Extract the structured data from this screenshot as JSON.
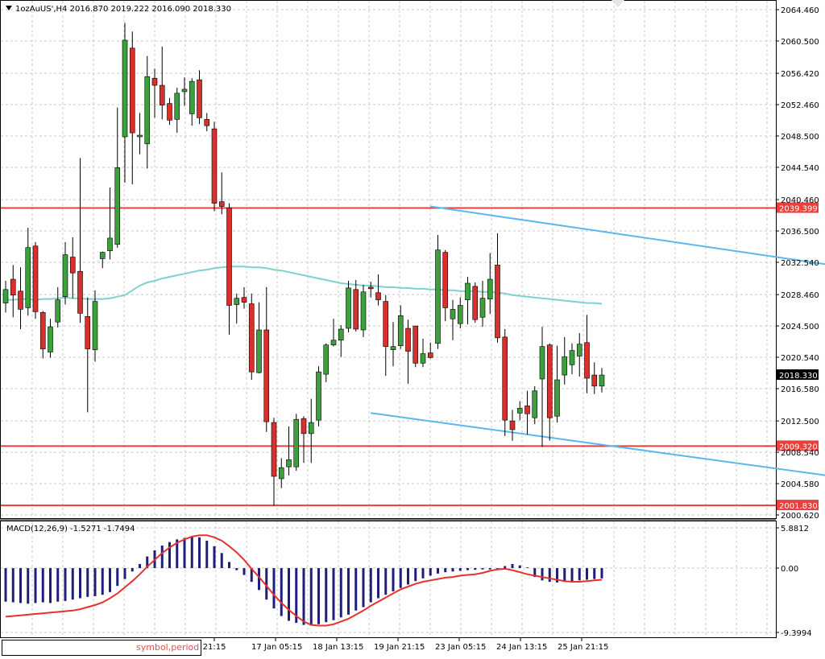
{
  "header": {
    "symbol": "1ozAuUS'",
    "timeframe": "H4",
    "ohlc": "2016.870 2019.222 2016.090 2018.330",
    "menu_icon": "triangle-down-icon"
  },
  "price_axis": {
    "ticks": [
      "2064.460",
      "2060.500",
      "2056.420",
      "2052.460",
      "2048.500",
      "2044.540",
      "2040.460",
      "2036.500",
      "2032.540",
      "2028.460",
      "2024.500",
      "2020.540",
      "2016.580",
      "2012.500",
      "2008.540",
      "2004.580",
      "2000.620"
    ],
    "current_price_label": "2018.330"
  },
  "levels": [
    {
      "label": "2039.399",
      "value": 2039.399,
      "color": "#e8413c"
    },
    {
      "label": "2009.320",
      "value": 2009.32,
      "color": "#e8413c"
    },
    {
      "label": "2001.830",
      "value": 2001.83,
      "color": "#e8413c"
    }
  ],
  "macd": {
    "label": "MACD(12,26,9) -1.5271 -1.7494",
    "ticks": [
      "5.8812",
      "0.00",
      "-9.3994"
    ]
  },
  "time_axis": {
    "labels": [
      "an 21:15",
      "17 Jan 05:15",
      "18 Jan 13:15",
      "19 Jan 21:15",
      "23 Jan 05:15",
      "24 Jan 13:15",
      "25 Jan 21:15"
    ]
  },
  "inset_box": {
    "text": "symbol,period"
  },
  "colors": {
    "bull": "#3ca03c",
    "bear": "#d8302c",
    "ma": "#7ed1cf",
    "channel": "#5ab8ee",
    "macd_hist": "#1f1f7a",
    "macd_signal": "#e8302c",
    "grid": "#c8c8c8"
  },
  "chart_data": {
    "type": "candlestick",
    "timeframe": "H4",
    "ylim": [
      2000.62,
      2064.46
    ],
    "candles": [
      {
        "o": 2027.4,
        "h": 2030.2,
        "l": 2026.2,
        "c": 2029.1
      },
      {
        "o": 2030.4,
        "h": 2032.2,
        "l": 2025.6,
        "c": 2028.4
      },
      {
        "o": 2028.9,
        "h": 2031.9,
        "l": 2024.1,
        "c": 2026.6
      },
      {
        "o": 2026.8,
        "h": 2036.9,
        "l": 2025.8,
        "c": 2034.4
      },
      {
        "o": 2034.6,
        "h": 2035.1,
        "l": 2025.4,
        "c": 2026.3
      },
      {
        "o": 2026.2,
        "h": 2026.4,
        "l": 2020.4,
        "c": 2021.6
      },
      {
        "o": 2021.2,
        "h": 2025.4,
        "l": 2020.5,
        "c": 2024.4
      },
      {
        "o": 2025.0,
        "h": 2029.4,
        "l": 2024.3,
        "c": 2027.8
      },
      {
        "o": 2028.2,
        "h": 2035.1,
        "l": 2027.2,
        "c": 2033.5
      },
      {
        "o": 2033.2,
        "h": 2035.7,
        "l": 2028.0,
        "c": 2031.2
      },
      {
        "o": 2031.4,
        "h": 2045.7,
        "l": 2024.9,
        "c": 2026.1
      },
      {
        "o": 2025.7,
        "h": 2028.1,
        "l": 2013.6,
        "c": 2021.6
      },
      {
        "o": 2021.5,
        "h": 2029.0,
        "l": 2020.0,
        "c": 2027.6
      },
      {
        "o": 2033.0,
        "h": 2033.9,
        "l": 2031.8,
        "c": 2033.8
      },
      {
        "o": 2034.0,
        "h": 2042.0,
        "l": 2032.9,
        "c": 2035.6
      },
      {
        "o": 2034.8,
        "h": 2052.1,
        "l": 2034.4,
        "c": 2044.5
      },
      {
        "o": 2048.4,
        "h": 2062.8,
        "l": 2042.6,
        "c": 2060.6
      },
      {
        "o": 2059.6,
        "h": 2061.7,
        "l": 2042.4,
        "c": 2048.9
      },
      {
        "o": 2048.4,
        "h": 2051.4,
        "l": 2046.2,
        "c": 2048.6
      },
      {
        "o": 2047.5,
        "h": 2058.6,
        "l": 2044.4,
        "c": 2056.0
      },
      {
        "o": 2055.8,
        "h": 2057.0,
        "l": 2050.8,
        "c": 2054.9
      },
      {
        "o": 2054.9,
        "h": 2059.8,
        "l": 2050.6,
        "c": 2052.4
      },
      {
        "o": 2052.6,
        "h": 2053.3,
        "l": 2049.9,
        "c": 2050.5
      },
      {
        "o": 2050.6,
        "h": 2054.6,
        "l": 2048.9,
        "c": 2053.9
      },
      {
        "o": 2054.1,
        "h": 2055.9,
        "l": 2052.3,
        "c": 2054.4
      },
      {
        "o": 2051.3,
        "h": 2055.8,
        "l": 2049.8,
        "c": 2055.4
      },
      {
        "o": 2055.6,
        "h": 2056.8,
        "l": 2050.0,
        "c": 2050.8
      },
      {
        "o": 2050.6,
        "h": 2051.4,
        "l": 2049.1,
        "c": 2049.8
      },
      {
        "o": 2049.4,
        "h": 2050.3,
        "l": 2039.0,
        "c": 2040.0
      },
      {
        "o": 2040.2,
        "h": 2043.9,
        "l": 2038.6,
        "c": 2039.6
      },
      {
        "o": 2039.4,
        "h": 2040.0,
        "l": 2023.4,
        "c": 2027.1
      },
      {
        "o": 2027.2,
        "h": 2028.6,
        "l": 2024.8,
        "c": 2028.0
      },
      {
        "o": 2028.1,
        "h": 2029.4,
        "l": 2026.7,
        "c": 2027.5
      },
      {
        "o": 2027.3,
        "h": 2028.6,
        "l": 2017.7,
        "c": 2018.7
      },
      {
        "o": 2018.6,
        "h": 2027.5,
        "l": 2018.5,
        "c": 2024.0
      },
      {
        "o": 2024.0,
        "h": 2029.4,
        "l": 2011.1,
        "c": 2012.4
      },
      {
        "o": 2012.3,
        "h": 2012.9,
        "l": 2001.8,
        "c": 2005.5
      },
      {
        "o": 2005.2,
        "h": 2007.8,
        "l": 2004.0,
        "c": 2006.6
      },
      {
        "o": 2006.7,
        "h": 2011.8,
        "l": 2005.6,
        "c": 2007.6
      },
      {
        "o": 2006.7,
        "h": 2013.4,
        "l": 2006.2,
        "c": 2012.7
      },
      {
        "o": 2012.8,
        "h": 2013.1,
        "l": 2007.2,
        "c": 2010.9
      },
      {
        "o": 2010.9,
        "h": 2015.3,
        "l": 2007.2,
        "c": 2012.3
      },
      {
        "o": 2012.6,
        "h": 2019.4,
        "l": 2011.8,
        "c": 2018.7
      },
      {
        "o": 2018.4,
        "h": 2022.3,
        "l": 2017.4,
        "c": 2022.1
      },
      {
        "o": 2022.1,
        "h": 2025.4,
        "l": 2021.9,
        "c": 2022.7
      },
      {
        "o": 2022.7,
        "h": 2024.6,
        "l": 2020.6,
        "c": 2024.1
      },
      {
        "o": 2024.2,
        "h": 2030.2,
        "l": 2023.7,
        "c": 2029.3
      },
      {
        "o": 2029.1,
        "h": 2030.3,
        "l": 2023.8,
        "c": 2024.1
      },
      {
        "o": 2024.0,
        "h": 2029.7,
        "l": 2023.1,
        "c": 2028.8
      },
      {
        "o": 2029.4,
        "h": 2030.1,
        "l": 2028.1,
        "c": 2029.2
      },
      {
        "o": 2028.7,
        "h": 2031.0,
        "l": 2027.1,
        "c": 2027.8
      },
      {
        "o": 2027.6,
        "h": 2028.4,
        "l": 2018.2,
        "c": 2021.9
      },
      {
        "o": 2021.5,
        "h": 2025.0,
        "l": 2019.4,
        "c": 2021.9
      },
      {
        "o": 2022.0,
        "h": 2027.1,
        "l": 2021.6,
        "c": 2025.8
      },
      {
        "o": 2024.2,
        "h": 2025.3,
        "l": 2017.2,
        "c": 2021.3
      },
      {
        "o": 2024.5,
        "h": 2024.5,
        "l": 2019.3,
        "c": 2019.8
      },
      {
        "o": 2019.8,
        "h": 2022.9,
        "l": 2019.3,
        "c": 2021.0
      },
      {
        "o": 2021.1,
        "h": 2022.4,
        "l": 2020.4,
        "c": 2020.5
      },
      {
        "o": 2022.3,
        "h": 2036.0,
        "l": 2021.6,
        "c": 2034.1
      },
      {
        "o": 2033.8,
        "h": 2034.1,
        "l": 2025.1,
        "c": 2026.8
      },
      {
        "o": 2025.4,
        "h": 2027.8,
        "l": 2022.7,
        "c": 2026.6
      },
      {
        "o": 2024.8,
        "h": 2028.1,
        "l": 2024.2,
        "c": 2027.1
      },
      {
        "o": 2027.8,
        "h": 2030.7,
        "l": 2024.7,
        "c": 2029.9
      },
      {
        "o": 2029.5,
        "h": 2030.0,
        "l": 2024.9,
        "c": 2025.3
      },
      {
        "o": 2025.6,
        "h": 2030.2,
        "l": 2024.4,
        "c": 2028.0
      },
      {
        "o": 2027.9,
        "h": 2033.7,
        "l": 2026.0,
        "c": 2030.4
      },
      {
        "o": 2032.2,
        "h": 2036.2,
        "l": 2022.4,
        "c": 2023.0
      },
      {
        "o": 2023.1,
        "h": 2024.1,
        "l": 2010.6,
        "c": 2012.6
      },
      {
        "o": 2012.5,
        "h": 2013.9,
        "l": 2010.0,
        "c": 2011.4
      },
      {
        "o": 2013.5,
        "h": 2015.0,
        "l": 2012.6,
        "c": 2014.1
      },
      {
        "o": 2014.4,
        "h": 2016.3,
        "l": 2010.8,
        "c": 2013.4
      },
      {
        "o": 2012.9,
        "h": 2016.9,
        "l": 2012.1,
        "c": 2016.3
      },
      {
        "o": 2017.8,
        "h": 2024.4,
        "l": 2009.2,
        "c": 2021.9
      },
      {
        "o": 2022.1,
        "h": 2022.3,
        "l": 2010.0,
        "c": 2012.9
      },
      {
        "o": 2013.1,
        "h": 2022.0,
        "l": 2012.3,
        "c": 2017.7
      },
      {
        "o": 2018.3,
        "h": 2023.1,
        "l": 2017.1,
        "c": 2020.6
      },
      {
        "o": 2019.6,
        "h": 2022.3,
        "l": 2018.4,
        "c": 2021.4
      },
      {
        "o": 2020.7,
        "h": 2023.6,
        "l": 2018.1,
        "c": 2022.2
      },
      {
        "o": 2022.4,
        "h": 2025.9,
        "l": 2016.0,
        "c": 2017.9
      },
      {
        "o": 2018.3,
        "h": 2019.9,
        "l": 2015.9,
        "c": 2016.9
      },
      {
        "o": 2016.9,
        "h": 2019.2,
        "l": 2016.1,
        "c": 2018.3
      }
    ],
    "ma_line": [
      2027.8,
      2027.8,
      2027.9,
      2027.9,
      2027.8,
      2027.9,
      2027.9,
      2028.0,
      2028.1,
      2028.0,
      2028.0,
      2027.9,
      2027.9,
      2027.9,
      2028.0,
      2028.2,
      2028.4,
      2029.0,
      2029.6,
      2030.0,
      2030.2,
      2030.5,
      2030.7,
      2030.9,
      2031.1,
      2031.3,
      2031.5,
      2031.6,
      2031.8,
      2031.9,
      2032.0,
      2032.0,
      2032.0,
      2031.9,
      2031.9,
      2031.8,
      2031.6,
      2031.5,
      2031.3,
      2031.1,
      2030.9,
      2030.7,
      2030.5,
      2030.3,
      2030.1,
      2029.9,
      2029.8,
      2029.7,
      2029.6,
      2029.6,
      2029.5,
      2029.4,
      2029.4,
      2029.3,
      2029.3,
      2029.2,
      2029.2,
      2029.1,
      2029.1,
      2029.0,
      2029.0,
      2028.9,
      2028.9,
      2028.9,
      2028.8,
      2028.8,
      2028.7,
      2028.6,
      2028.4,
      2028.3,
      2028.2,
      2028.1,
      2028.0,
      2027.9,
      2027.8,
      2027.7,
      2027.6,
      2027.5,
      2027.4,
      2027.4,
      2027.3
    ],
    "channel": [
      {
        "x1": 57,
        "y1": 2039.6,
        "x2": 118,
        "y2": 2031.2
      },
      {
        "x1": 49,
        "y1": 2013.5,
        "x2": 118,
        "y2": 2004.6
      }
    ],
    "macd": {
      "ylim": [
        -9.3994,
        5.8812
      ],
      "histogram": [
        -4.9,
        -5.0,
        -5.1,
        -5.2,
        -5.1,
        -5.0,
        -5.1,
        -4.9,
        -4.8,
        -4.6,
        -4.4,
        -4.2,
        -4.1,
        -3.9,
        -3.5,
        -2.6,
        -1.6,
        -0.5,
        0.6,
        1.7,
        2.6,
        3.3,
        3.8,
        4.2,
        4.4,
        4.6,
        4.5,
        4.0,
        3.2,
        2.2,
        0.9,
        -0.3,
        -1.0,
        -2.0,
        -3.2,
        -4.6,
        -5.9,
        -7.0,
        -7.7,
        -8.0,
        -8.3,
        -8.4,
        -8.2,
        -7.9,
        -7.6,
        -7.2,
        -6.8,
        -6.2,
        -5.7,
        -5.0,
        -4.4,
        -3.9,
        -3.4,
        -2.9,
        -2.4,
        -1.9,
        -1.5,
        -1.1,
        -0.8,
        -0.6,
        -0.5,
        -0.4,
        -0.3,
        -0.25,
        -0.2,
        -0.2,
        -0.1,
        0.3,
        0.6,
        0.4,
        0.1,
        -1.3,
        -1.8,
        -2.0,
        -2.1,
        -2.0,
        -1.9,
        -1.8,
        -1.7,
        -1.6,
        -1.5
      ],
      "signal": [
        -7.1,
        -7.0,
        -6.9,
        -6.8,
        -6.7,
        -6.6,
        -6.5,
        -6.4,
        -6.3,
        -6.2,
        -6.0,
        -5.7,
        -5.4,
        -5.0,
        -4.4,
        -3.7,
        -2.8,
        -1.9,
        -0.9,
        0.2,
        1.2,
        2.2,
        3.0,
        3.7,
        4.2,
        4.6,
        4.8,
        4.8,
        4.5,
        4.0,
        3.2,
        2.3,
        1.2,
        -0.1,
        -1.3,
        -2.6,
        -3.9,
        -5.1,
        -6.1,
        -7.0,
        -7.8,
        -8.3,
        -8.4,
        -8.4,
        -8.2,
        -7.8,
        -7.4,
        -6.8,
        -6.2,
        -5.5,
        -4.9,
        -4.3,
        -3.7,
        -3.1,
        -2.7,
        -2.3,
        -2.0,
        -1.8,
        -1.6,
        -1.4,
        -1.3,
        -1.1,
        -1.0,
        -0.9,
        -0.7,
        -0.4,
        -0.2,
        -0.1,
        -0.3,
        -0.6,
        -0.9,
        -1.1,
        -1.3,
        -1.5,
        -1.7,
        -1.9,
        -2.0,
        -2.0,
        -1.9,
        -1.8,
        -1.7
      ]
    }
  }
}
